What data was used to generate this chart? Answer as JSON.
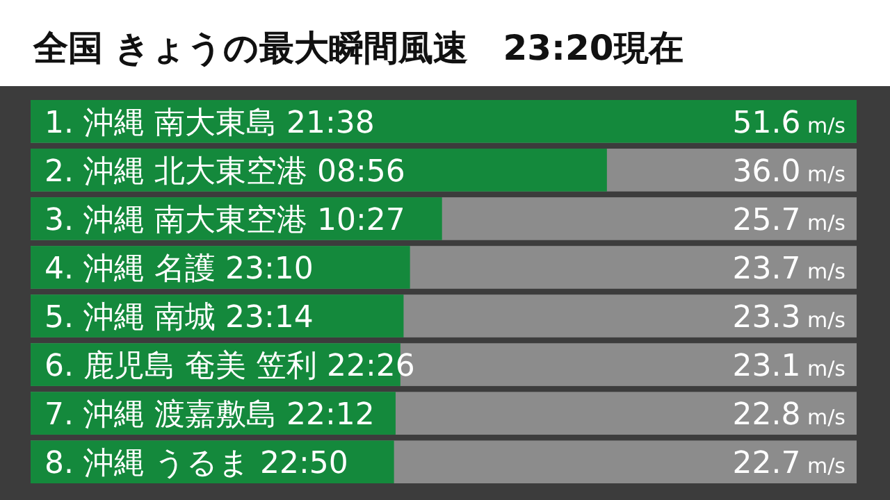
{
  "chart_data": {
    "type": "bar",
    "orientation": "horizontal",
    "title": "全国 きょうの最大瞬間風速　23:20現在",
    "categories": [
      "1. 沖縄 南大東島 21:38",
      "2. 沖縄 北大東空港 08:56",
      "3. 沖縄 南大東空港 10:27",
      "4. 沖縄 名護 23:10",
      "5. 沖縄 南城 23:14",
      "6. 鹿児島 奄美 笠利 22:26",
      "7. 沖縄 渡嘉敷島 22:12",
      "8. 沖縄 うるま 22:50"
    ],
    "values": [
      51.6,
      36.0,
      25.7,
      23.7,
      23.3,
      23.1,
      22.8,
      22.7
    ],
    "value_labels": [
      "51.6 m/s",
      "36.0 m/s",
      "25.7 m/s",
      "23.7 m/s",
      "23.3 m/s",
      "23.1 m/s",
      "22.8 m/s",
      "22.7 m/s"
    ],
    "color": "#14893c"
  }
}
